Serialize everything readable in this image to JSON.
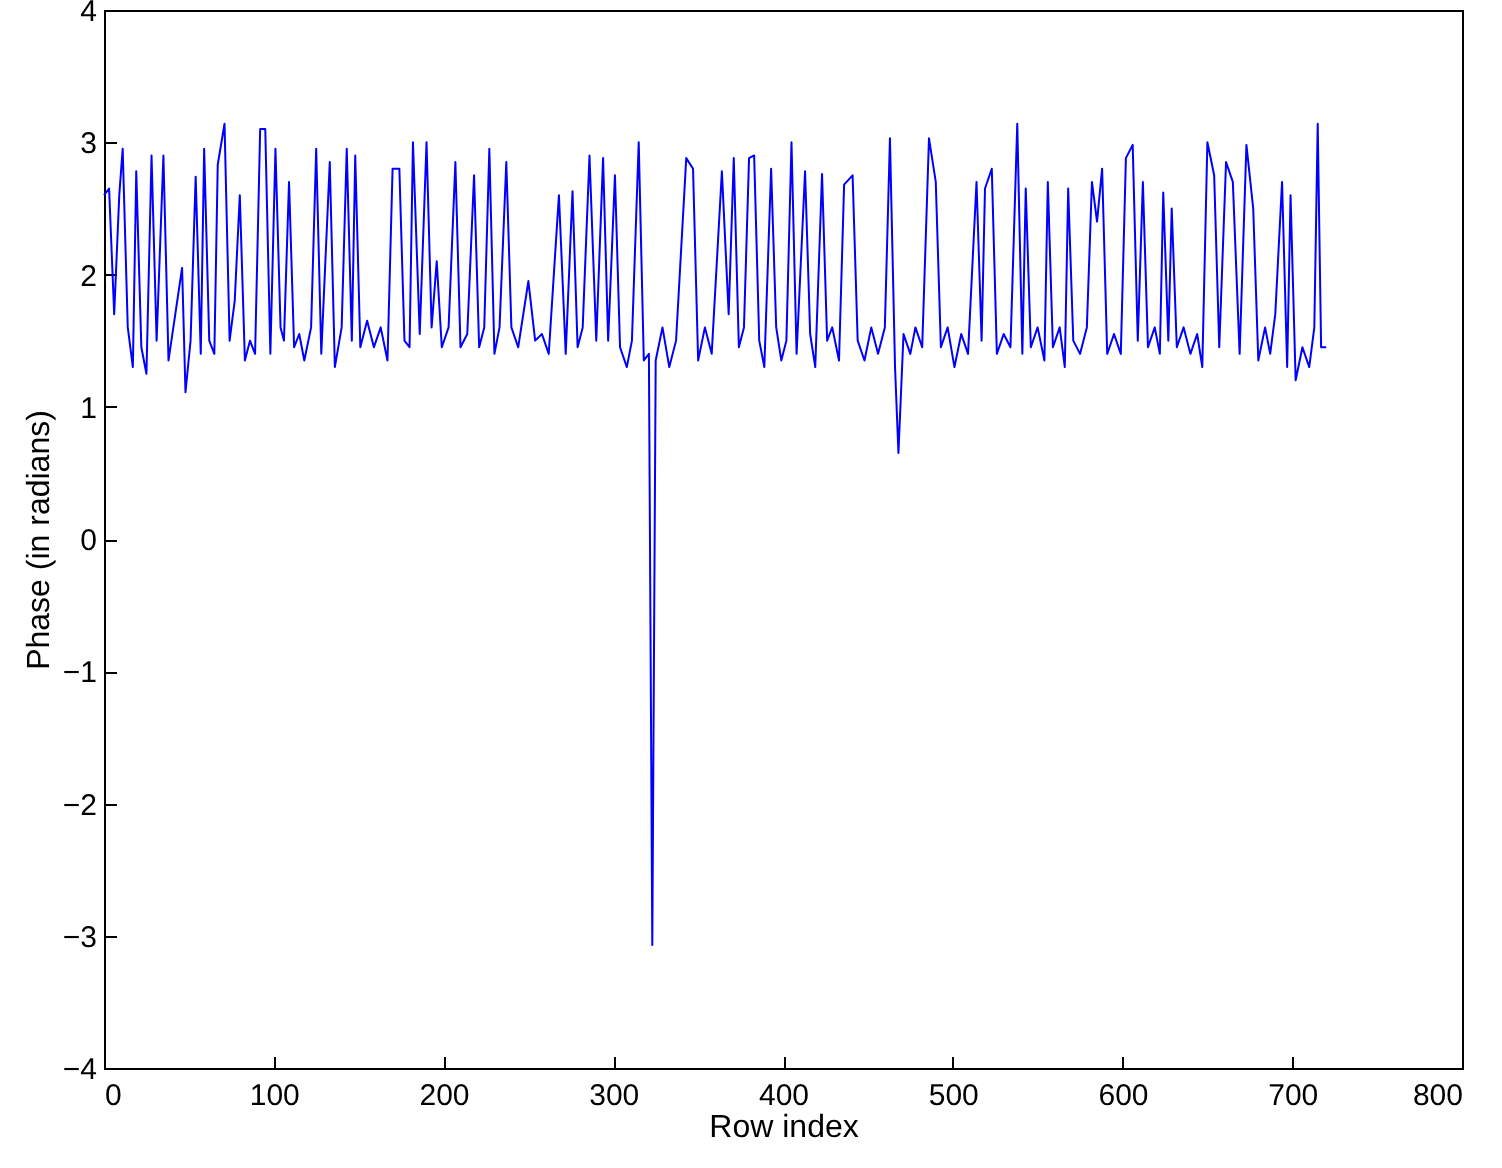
{
  "chart_data": {
    "type": "line",
    "xlabel": "Row index",
    "ylabel": "Phase (in radians)",
    "xlim": [
      0,
      800
    ],
    "xticks": [
      0,
      100,
      200,
      300,
      400,
      500,
      600,
      700,
      800
    ],
    "ylim": [
      -4,
      4
    ],
    "yticks": [
      -4,
      -3,
      -2,
      -1,
      0,
      1,
      2,
      3,
      4
    ],
    "grid": false,
    "marker": "none",
    "line_style": "solid",
    "x": [
      0,
      3,
      6,
      9,
      11,
      14,
      17,
      19,
      22,
      25,
      28,
      31,
      35,
      38,
      42,
      46,
      48,
      51,
      54,
      57,
      59,
      62,
      65,
      67,
      71,
      74,
      77,
      80,
      83,
      86,
      89,
      92,
      95,
      98,
      101,
      104,
      106,
      109,
      112,
      115,
      118,
      122,
      125,
      128,
      133,
      136,
      140,
      143,
      146,
      148,
      151,
      155,
      159,
      163,
      167,
      170,
      174,
      177,
      180,
      182,
      186,
      190,
      193,
      196,
      199,
      203,
      207,
      210,
      214,
      218,
      221,
      224,
      227,
      230,
      233,
      237,
      240,
      244,
      250,
      254,
      258,
      262,
      268,
      272,
      276,
      279,
      282,
      286,
      290,
      294,
      297,
      301,
      304,
      308,
      311,
      315,
      318,
      321,
      323,
      325,
      329,
      333,
      337,
      343,
      347,
      350,
      354,
      358,
      364,
      368,
      371,
      374,
      377,
      380,
      383,
      386,
      389,
      393,
      396,
      399,
      402,
      405,
      408,
      413,
      416,
      419,
      423,
      426,
      429,
      433,
      436,
      441,
      444,
      448,
      452,
      456,
      460,
      463,
      466,
      468,
      471,
      475,
      478,
      482,
      486,
      490,
      493,
      497,
      501,
      505,
      509,
      514,
      517,
      519,
      523,
      526,
      530,
      534,
      538,
      541,
      543,
      546,
      550,
      554,
      556,
      559,
      563,
      566,
      568,
      571,
      575,
      579,
      582,
      585,
      588,
      591,
      595,
      599,
      602,
      606,
      609,
      612,
      615,
      619,
      622,
      624,
      627,
      629,
      632,
      636,
      640,
      644,
      647,
      650,
      654,
      657,
      661,
      665,
      669,
      673,
      677,
      680,
      684,
      687,
      690,
      694,
      697,
      699,
      702,
      706,
      710,
      713,
      715,
      717,
      720
    ],
    "series": [
      {
        "color": "#0000ff",
        "values": [
          2.6,
          2.65,
          1.7,
          2.6,
          2.95,
          1.6,
          1.3,
          2.78,
          1.45,
          1.25,
          2.9,
          1.5,
          2.9,
          1.35,
          1.7,
          2.05,
          1.11,
          1.5,
          2.74,
          1.4,
          2.95,
          1.5,
          1.4,
          2.83,
          3.14,
          1.5,
          1.8,
          2.6,
          1.35,
          1.5,
          1.4,
          3.1,
          3.1,
          1.4,
          2.95,
          1.6,
          1.5,
          2.7,
          1.45,
          1.55,
          1.35,
          1.6,
          2.95,
          1.4,
          2.85,
          1.3,
          1.6,
          2.95,
          1.5,
          2.9,
          1.45,
          1.65,
          1.45,
          1.6,
          1.35,
          2.8,
          2.8,
          1.5,
          1.45,
          3.0,
          1.55,
          3.0,
          1.6,
          2.1,
          1.45,
          1.6,
          2.85,
          1.45,
          1.55,
          2.75,
          1.45,
          1.6,
          2.95,
          1.4,
          1.6,
          2.85,
          1.6,
          1.45,
          1.95,
          1.5,
          1.55,
          1.4,
          2.6,
          1.4,
          2.63,
          1.45,
          1.6,
          2.9,
          1.5,
          2.88,
          1.5,
          2.75,
          1.45,
          1.3,
          1.5,
          3.0,
          1.35,
          1.4,
          -3.07,
          1.35,
          1.6,
          1.3,
          1.5,
          2.88,
          2.8,
          1.35,
          1.6,
          1.4,
          2.78,
          1.7,
          2.88,
          1.45,
          1.6,
          2.88,
          2.9,
          1.5,
          1.3,
          2.8,
          1.6,
          1.35,
          1.5,
          3.0,
          1.4,
          2.78,
          1.55,
          1.3,
          2.76,
          1.5,
          1.6,
          1.35,
          2.68,
          2.75,
          1.5,
          1.35,
          1.6,
          1.4,
          1.6,
          3.03,
          1.3,
          0.65,
          1.55,
          1.4,
          1.6,
          1.45,
          3.03,
          2.7,
          1.45,
          1.6,
          1.3,
          1.55,
          1.4,
          2.7,
          1.5,
          2.65,
          2.8,
          1.4,
          1.55,
          1.45,
          3.14,
          1.4,
          2.65,
          1.45,
          1.6,
          1.35,
          2.7,
          1.45,
          1.6,
          1.3,
          2.65,
          1.5,
          1.4,
          1.6,
          2.7,
          2.4,
          2.8,
          1.4,
          1.55,
          1.4,
          2.88,
          2.98,
          1.5,
          2.7,
          1.45,
          1.6,
          1.4,
          2.62,
          1.5,
          2.5,
          1.45,
          1.6,
          1.4,
          1.55,
          1.3,
          3.0,
          2.75,
          1.45,
          2.85,
          2.7,
          1.4,
          2.98,
          2.5,
          1.35,
          1.6,
          1.4,
          1.7,
          2.7,
          1.3,
          2.6,
          1.2,
          1.45,
          1.3,
          1.6,
          3.14,
          1.45,
          1.45
        ]
      }
    ]
  }
}
